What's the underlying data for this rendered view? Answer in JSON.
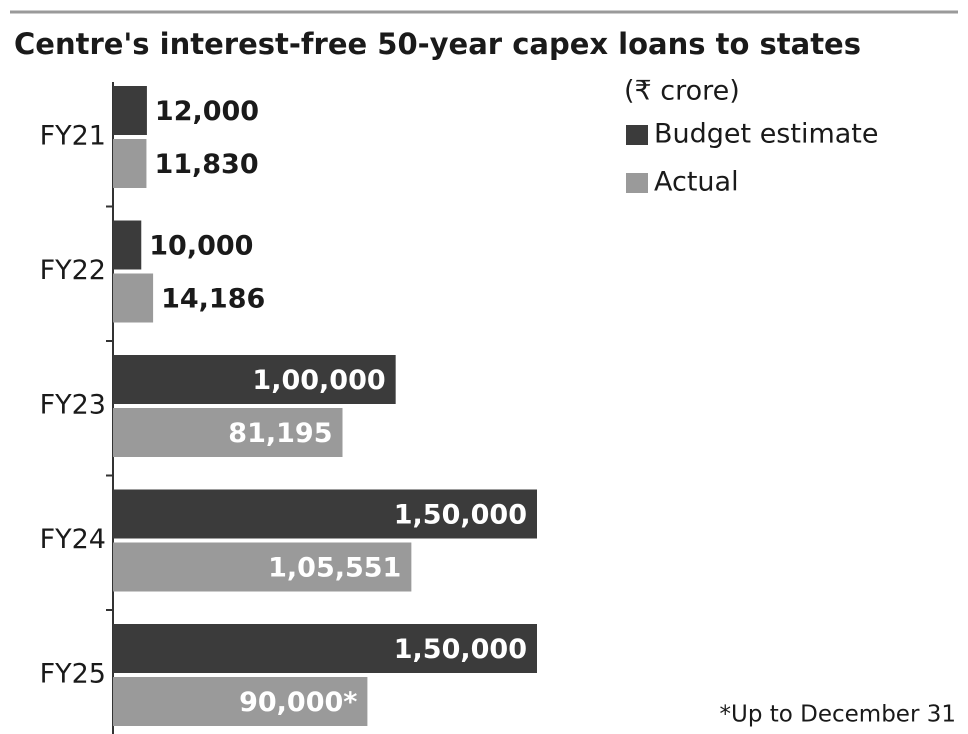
{
  "chart_data": {
    "type": "barh",
    "title": "Centre's interest-free 50-year capex loans to states",
    "subtitle": "(₹ crore)",
    "categories": [
      "FY21",
      "FY22",
      "FY23",
      "FY24",
      "FY25"
    ],
    "series": [
      {
        "name": "Budget estimate",
        "color": "#3b3b3b",
        "values": [
          12000,
          10000,
          100000,
          150000,
          150000
        ],
        "value_labels": [
          "12,000",
          "10,000",
          "1,00,000",
          "1,50,000",
          "1,50,000"
        ]
      },
      {
        "name": "Actual",
        "color": "#9a9a9a",
        "values": [
          11830,
          14186,
          81195,
          105551,
          90000
        ],
        "value_labels": [
          "11,830",
          "14,186",
          "81,195",
          "1,05,551",
          "90,000*"
        ]
      }
    ],
    "footnote": "*Up to December 31"
  }
}
